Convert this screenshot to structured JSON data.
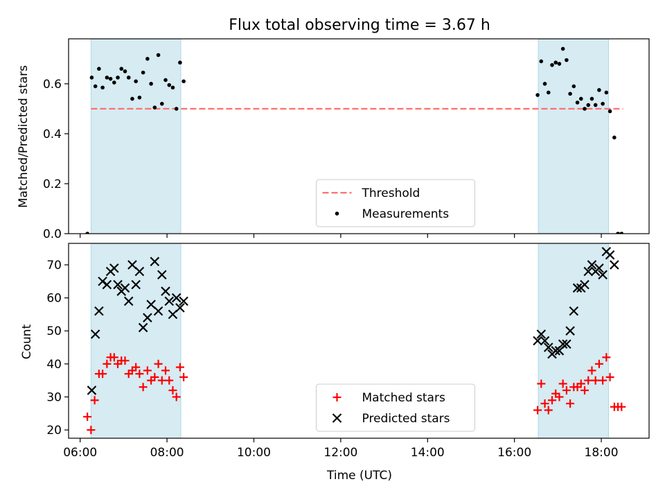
{
  "figure": {
    "title": "Flux total observing time = 3.67 h",
    "xlabel": "Time (UTC)",
    "xticks": [
      "06:00",
      "08:00",
      "10:00",
      "12:00",
      "14:00",
      "16:00",
      "18:00"
    ],
    "colors": {
      "band": "#add8e6",
      "threshold": "#ff6f6f",
      "matched": "#ff0000",
      "predicted": "#000000",
      "measure": "#000000"
    }
  },
  "chart_data": [
    {
      "type": "scatter",
      "ylabel": "Matched/Predicted stars",
      "xlim": [
        "05:44",
        "19:06"
      ],
      "ylim": [
        0,
        0.78
      ],
      "yticks": [
        "0.0",
        "0.2",
        "0.4",
        "0.6"
      ],
      "shaded_intervals": [
        [
          "06:15",
          "08:19"
        ],
        [
          "16:33",
          "18:10"
        ]
      ],
      "threshold": {
        "name": "Threshold",
        "y": 0.5,
        "x_range": [
          "06:15",
          "18:30"
        ]
      },
      "legend": {
        "position": "lower center",
        "entries": [
          "Threshold",
          "Measurements"
        ]
      },
      "series": [
        {
          "name": "Measurements",
          "points": [
            [
              "06:10",
              0.0
            ],
            [
              "06:16",
              0.625
            ],
            [
              "06:21",
              0.59
            ],
            [
              "06:26",
              0.66
            ],
            [
              "06:31",
              0.585
            ],
            [
              "06:37",
              0.625
            ],
            [
              "06:42",
              0.62
            ],
            [
              "06:47",
              0.605
            ],
            [
              "06:52",
              0.625
            ],
            [
              "06:57",
              0.66
            ],
            [
              "07:02",
              0.65
            ],
            [
              "07:07",
              0.625
            ],
            [
              "07:12",
              0.54
            ],
            [
              "07:17",
              0.61
            ],
            [
              "07:22",
              0.545
            ],
            [
              "07:27",
              0.645
            ],
            [
              "07:33",
              0.7
            ],
            [
              "07:38",
              0.6
            ],
            [
              "07:43",
              0.505
            ],
            [
              "07:48",
              0.715
            ],
            [
              "07:53",
              0.52
            ],
            [
              "07:58",
              0.615
            ],
            [
              "08:03",
              0.595
            ],
            [
              "08:08",
              0.585
            ],
            [
              "08:13",
              0.5
            ],
            [
              "08:18",
              0.685
            ],
            [
              "08:23",
              0.61
            ],
            [
              "16:32",
              0.555
            ],
            [
              "16:37",
              0.69
            ],
            [
              "16:42",
              0.6
            ],
            [
              "16:47",
              0.565
            ],
            [
              "16:52",
              0.675
            ],
            [
              "16:57",
              0.685
            ],
            [
              "17:02",
              0.68
            ],
            [
              "17:07",
              0.74
            ],
            [
              "17:12",
              0.695
            ],
            [
              "17:17",
              0.56
            ],
            [
              "17:22",
              0.59
            ],
            [
              "17:27",
              0.525
            ],
            [
              "17:32",
              0.54
            ],
            [
              "17:37",
              0.5
            ],
            [
              "17:42",
              0.515
            ],
            [
              "17:47",
              0.54
            ],
            [
              "17:52",
              0.515
            ],
            [
              "17:57",
              0.575
            ],
            [
              "18:02",
              0.52
            ],
            [
              "18:07",
              0.565
            ],
            [
              "18:12",
              0.49
            ],
            [
              "18:18",
              0.385
            ],
            [
              "18:23",
              0.0
            ],
            [
              "18:28",
              0.0
            ]
          ]
        }
      ]
    },
    {
      "type": "scatter",
      "ylabel": "Count",
      "xlim": [
        "05:44",
        "19:06"
      ],
      "ylim": [
        17.5,
        76.5
      ],
      "yticks": [
        "20",
        "30",
        "40",
        "50",
        "60",
        "70"
      ],
      "shaded_intervals": [
        [
          "06:15",
          "08:19"
        ],
        [
          "16:33",
          "18:10"
        ]
      ],
      "legend": {
        "position": "lower center",
        "entries": [
          "Matched stars",
          "Predicted stars"
        ]
      },
      "series": [
        {
          "name": "Matched stars",
          "marker": "+",
          "points": [
            [
              "06:10",
              24
            ],
            [
              "06:15",
              20
            ],
            [
              "06:20",
              29
            ],
            [
              "06:26",
              37
            ],
            [
              "06:31",
              37
            ],
            [
              "06:37",
              40
            ],
            [
              "06:42",
              42
            ],
            [
              "06:47",
              42
            ],
            [
              "06:52",
              40
            ],
            [
              "06:57",
              41
            ],
            [
              "07:02",
              41
            ],
            [
              "07:07",
              37
            ],
            [
              "07:12",
              38
            ],
            [
              "07:17",
              39
            ],
            [
              "07:22",
              37
            ],
            [
              "07:27",
              33
            ],
            [
              "07:33",
              38
            ],
            [
              "07:38",
              35
            ],
            [
              "07:43",
              36
            ],
            [
              "07:48",
              40
            ],
            [
              "07:53",
              35
            ],
            [
              "07:58",
              38
            ],
            [
              "08:03",
              35
            ],
            [
              "08:08",
              32
            ],
            [
              "08:13",
              30
            ],
            [
              "08:18",
              39
            ],
            [
              "08:23",
              36
            ],
            [
              "16:32",
              26
            ],
            [
              "16:37",
              34
            ],
            [
              "16:42",
              28
            ],
            [
              "16:47",
              26
            ],
            [
              "16:52",
              29
            ],
            [
              "16:57",
              31
            ],
            [
              "17:02",
              30
            ],
            [
              "17:07",
              34
            ],
            [
              "17:12",
              32
            ],
            [
              "17:17",
              28
            ],
            [
              "17:22",
              33
            ],
            [
              "17:27",
              33
            ],
            [
              "17:32",
              34
            ],
            [
              "17:37",
              32
            ],
            [
              "17:42",
              35
            ],
            [
              "17:47",
              38
            ],
            [
              "17:52",
              35
            ],
            [
              "17:57",
              40
            ],
            [
              "18:02",
              35
            ],
            [
              "18:07",
              42
            ],
            [
              "18:12",
              36
            ],
            [
              "18:18",
              27
            ],
            [
              "18:23",
              27
            ],
            [
              "18:28",
              27
            ]
          ]
        },
        {
          "name": "Predicted stars",
          "marker": "x",
          "points": [
            [
              "06:16",
              32
            ],
            [
              "06:21",
              49
            ],
            [
              "06:26",
              56
            ],
            [
              "06:31",
              65
            ],
            [
              "06:37",
              64
            ],
            [
              "06:42",
              68
            ],
            [
              "06:47",
              69
            ],
            [
              "06:52",
              64
            ],
            [
              "06:57",
              62
            ],
            [
              "07:02",
              63
            ],
            [
              "07:07",
              59
            ],
            [
              "07:12",
              70
            ],
            [
              "07:17",
              64
            ],
            [
              "07:22",
              68
            ],
            [
              "07:27",
              51
            ],
            [
              "07:33",
              54
            ],
            [
              "07:38",
              58
            ],
            [
              "07:43",
              71
            ],
            [
              "07:48",
              56
            ],
            [
              "07:53",
              67
            ],
            [
              "07:58",
              62
            ],
            [
              "08:03",
              59
            ],
            [
              "08:08",
              55
            ],
            [
              "08:13",
              60
            ],
            [
              "08:18",
              57
            ],
            [
              "08:23",
              59
            ],
            [
              "16:32",
              47
            ],
            [
              "16:37",
              49
            ],
            [
              "16:42",
              47
            ],
            [
              "16:47",
              45
            ],
            [
              "16:52",
              43
            ],
            [
              "16:57",
              44
            ],
            [
              "17:02",
              44
            ],
            [
              "17:07",
              46
            ],
            [
              "17:12",
              46
            ],
            [
              "17:17",
              50
            ],
            [
              "17:22",
              56
            ],
            [
              "17:27",
              63
            ],
            [
              "17:32",
              63
            ],
            [
              "17:37",
              64
            ],
            [
              "17:42",
              68
            ],
            [
              "17:47",
              70
            ],
            [
              "17:52",
              68
            ],
            [
              "17:57",
              69
            ],
            [
              "18:02",
              67
            ],
            [
              "18:07",
              74
            ],
            [
              "18:12",
              73
            ],
            [
              "18:18",
              70
            ]
          ]
        }
      ]
    }
  ]
}
